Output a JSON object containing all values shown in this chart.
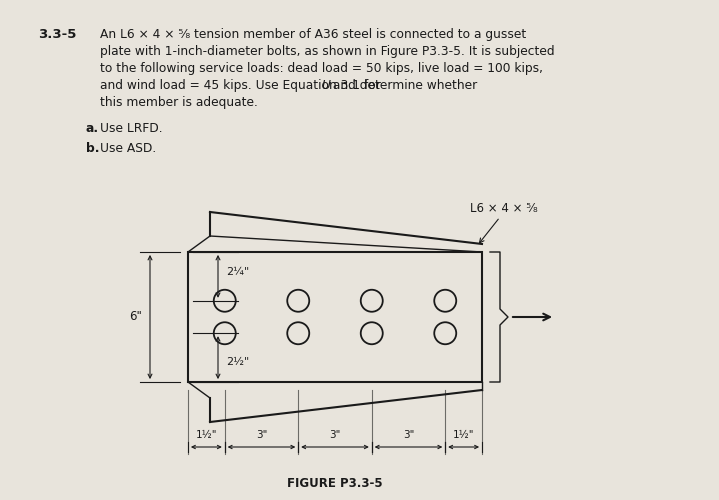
{
  "bg_color": "#e8e4dc",
  "text_color": "#1a1a1a",
  "problem_number": "3.3-5",
  "problem_text_line1": "An L6 × 4 × ⁵⁄₈ tension member of A36 steel is connected to a gusset",
  "problem_text_line2": "plate with 1-inch-diameter bolts, as shown in Figure P3.3-5. It is subjected",
  "problem_text_line3": "to the following service loads: dead load = 50 kips, live load = 100 kips,",
  "problem_text_line4": "and wind load = 45 kips. Use Equation 3.1 for U and determine whether",
  "problem_text_line4_italic_U": true,
  "problem_text_line5": "this member is adequate.",
  "part_a": "Use LRFD.",
  "part_b": "Use ASD.",
  "figure_label": "FIGURE P3.3-5",
  "angle_label": "L6 × 4 × ⁵⁄₈",
  "dim_top": "2¼\"",
  "dim_bottom": "2½\"",
  "dim_left": "6\"",
  "dim_h1": "1½\"",
  "dim_s1": "3\"",
  "dim_s2": "3\"",
  "dim_s3": "3\"",
  "dim_h2": "1½\""
}
